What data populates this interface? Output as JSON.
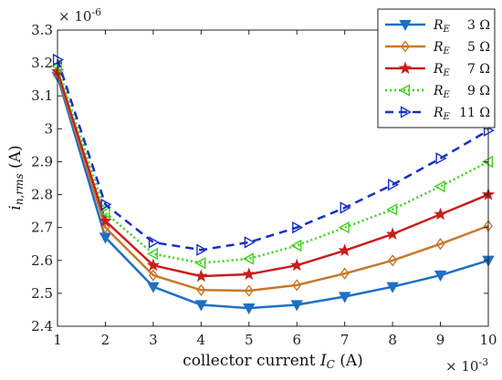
{
  "chart_data": {
    "type": "line",
    "x": [
      1,
      2,
      3,
      4,
      5,
      6,
      7,
      8,
      9,
      10
    ],
    "xlabel_prefix": "collector current ",
    "xlabel_symbol": "I",
    "xlabel_sub": "C",
    "xlabel_suffix": " (A)",
    "ylabel_symbol": "i",
    "ylabel_sub": "n,rms",
    "ylabel_suffix": " (A)",
    "x_multiplier_base": "× 10",
    "x_multiplier_exp": "-3",
    "y_multiplier_base": "× 10",
    "y_multiplier_exp": "-6",
    "xlim": [
      1,
      10
    ],
    "ylim": [
      2.4,
      3.3
    ],
    "xticks": [
      1,
      2,
      3,
      4,
      5,
      6,
      7,
      8,
      9,
      10
    ],
    "yticks": [
      2.4,
      2.5,
      2.6,
      2.7,
      2.8,
      2.9,
      3.0,
      3.1,
      3.2,
      3.3
    ],
    "ytick_labels": [
      "2.4",
      "2.5",
      "2.6",
      "2.7",
      "2.8",
      "2.9",
      "3",
      "3.1",
      "3.2",
      "3.3"
    ],
    "grid": false,
    "legend_position": "top-right",
    "legend_symbol": "R",
    "legend_sub": "E",
    "series": [
      {
        "name": "3 Ω",
        "color": "#1f6fc4",
        "marker": "triangle-down",
        "dash": "solid",
        "values": [
          3.16,
          2.67,
          2.52,
          2.465,
          2.455,
          2.465,
          2.49,
          2.52,
          2.555,
          2.6
        ]
      },
      {
        "name": "5 Ω",
        "color": "#c8782a",
        "marker": "diamond",
        "dash": "solid",
        "values": [
          3.17,
          2.7,
          2.555,
          2.51,
          2.508,
          2.525,
          2.56,
          2.6,
          2.65,
          2.705
        ]
      },
      {
        "name": "7 Ω",
        "color": "#c81e1e",
        "marker": "star",
        "dash": "solid",
        "values": [
          3.175,
          2.72,
          2.585,
          2.552,
          2.558,
          2.585,
          2.63,
          2.68,
          2.74,
          2.8
        ]
      },
      {
        "name": "9 Ω",
        "color": "#3dd11a",
        "marker": "triangle-left",
        "dash": "dotted",
        "values": [
          3.19,
          2.745,
          2.62,
          2.592,
          2.605,
          2.645,
          2.7,
          2.755,
          2.825,
          2.9
        ]
      },
      {
        "name": "11 Ω",
        "color": "#1530c8",
        "marker": "triangle-right",
        "dash": "dashed",
        "values": [
          3.21,
          2.77,
          2.655,
          2.632,
          2.655,
          2.7,
          2.76,
          2.83,
          2.91,
          2.995
        ]
      }
    ]
  }
}
